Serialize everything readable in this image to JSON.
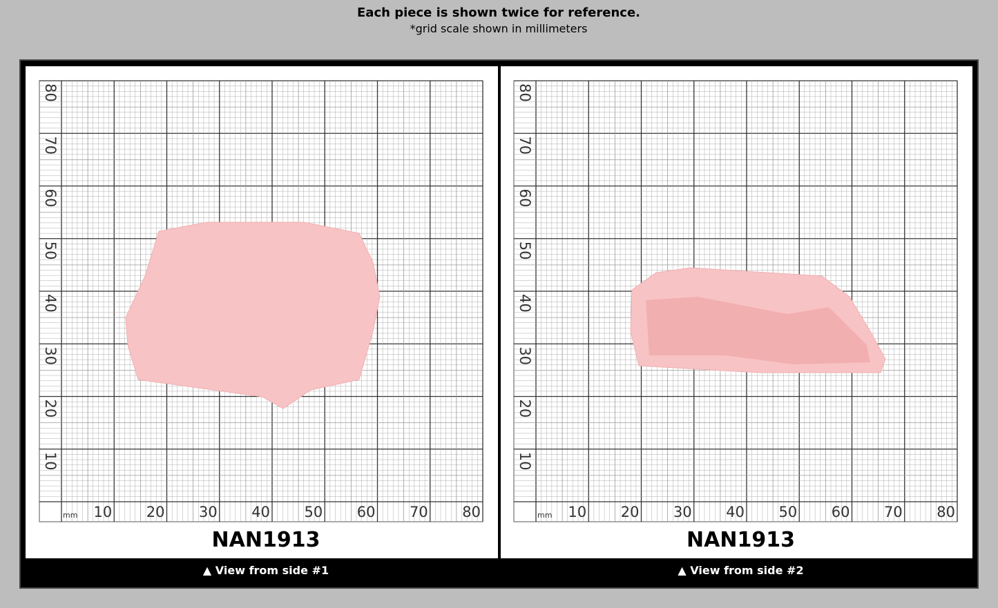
{
  "header": {
    "title": "Each piece is shown twice for reference.",
    "subtitle": "*grid scale shown in millimeters"
  },
  "panels": [
    {
      "grid": {
        "unit": "mm",
        "x_labels": [
          "10",
          "20",
          "30",
          "40",
          "50",
          "60",
          "70",
          "80"
        ],
        "y_labels": [
          "10",
          "20",
          "30",
          "40",
          "50",
          "60",
          "70",
          "80"
        ]
      },
      "label": "NAN1913",
      "caption": "▲ View from side #1"
    },
    {
      "grid": {
        "unit": "mm",
        "x_labels": [
          "10",
          "20",
          "30",
          "40",
          "50",
          "60",
          "70",
          "80"
        ],
        "y_labels": [
          "10",
          "20",
          "30",
          "40",
          "50",
          "60",
          "70",
          "80"
        ]
      },
      "label": "NAN1913",
      "caption": "▲ View from side #2"
    }
  ]
}
